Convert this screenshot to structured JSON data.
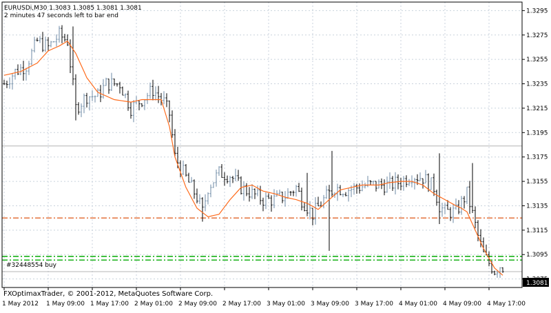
{
  "header": {
    "symbol_line": "EURUSDi,M30  1.3083 1.3085 1.3081 1.3081",
    "timer_line": "2 minutes 47 seconds left to bar end"
  },
  "footer": {
    "copyright": "FXOptimaxTrader, © 2001-2012, MetaQuotes Software Corp."
  },
  "order_label": "#32448554 buy",
  "price_label": "1.3081",
  "colors": {
    "background": "#ffffff",
    "grid": "#c8d2dc",
    "candle_bull": "#6c8aa4",
    "candle_bear": "#000000",
    "moving_average": "#ff6a1a",
    "order_line": "#00aa00",
    "level_line": "#e0642a",
    "hline": "#b4b4b4",
    "price_box": "#000000"
  },
  "chart_data": {
    "type": "candlestick",
    "symbol": "EURUSDi",
    "timeframe": "M30",
    "ylim": [
      1.3068,
      1.3302
    ],
    "y_ticks": [
      1.3295,
      1.3275,
      1.3255,
      1.3235,
      1.3215,
      1.3195,
      1.3175,
      1.3155,
      1.3135,
      1.3115,
      1.3095,
      1.3075
    ],
    "x_ticks": [
      {
        "bar": 0,
        "label": "1 May 2012"
      },
      {
        "bar": 16,
        "label": "1 May 09:00"
      },
      {
        "bar": 32,
        "label": "1 May 17:00"
      },
      {
        "bar": 48,
        "label": "2 May 01:00"
      },
      {
        "bar": 64,
        "label": "2 May 09:00"
      },
      {
        "bar": 80,
        "label": "2 May 17:00"
      },
      {
        "bar": 96,
        "label": "3 May 01:00"
      },
      {
        "bar": 112,
        "label": "3 May 09:00"
      },
      {
        "bar": 128,
        "label": "3 May 17:00"
      },
      {
        "bar": 144,
        "label": "4 May 01:00"
      },
      {
        "bar": 160,
        "label": "4 May 09:00"
      },
      {
        "bar": 176,
        "label": "4 May 17:00"
      }
    ],
    "bar_count": 182,
    "anchors": [
      [
        0,
        1.3235
      ],
      [
        4,
        1.3245
      ],
      [
        8,
        1.325
      ],
      [
        12,
        1.327
      ],
      [
        16,
        1.3265
      ],
      [
        20,
        1.3275
      ],
      [
        23,
        1.327
      ],
      [
        26,
        1.3215
      ],
      [
        30,
        1.3225
      ],
      [
        34,
        1.3225
      ],
      [
        37,
        1.3235
      ],
      [
        42,
        1.3235
      ],
      [
        46,
        1.3215
      ],
      [
        50,
        1.3222
      ],
      [
        54,
        1.323
      ],
      [
        58,
        1.322
      ],
      [
        60,
        1.321
      ],
      [
        62,
        1.3175
      ],
      [
        66,
        1.3158
      ],
      [
        70,
        1.3142
      ],
      [
        72,
        1.313
      ],
      [
        74,
        1.315
      ],
      [
        78,
        1.3162
      ],
      [
        82,
        1.316
      ],
      [
        86,
        1.315
      ],
      [
        90,
        1.3145
      ],
      [
        94,
        1.314
      ],
      [
        98,
        1.314
      ],
      [
        102,
        1.3143
      ],
      [
        106,
        1.315
      ],
      [
        108,
        1.314
      ],
      [
        112,
        1.3128
      ],
      [
        116,
        1.314
      ],
      [
        120,
        1.315
      ],
      [
        124,
        1.3148
      ],
      [
        128,
        1.315
      ],
      [
        132,
        1.3152
      ],
      [
        136,
        1.3152
      ],
      [
        140,
        1.3152
      ],
      [
        144,
        1.3155
      ],
      [
        148,
        1.316
      ],
      [
        152,
        1.3158
      ],
      [
        156,
        1.315
      ],
      [
        158,
        1.3135
      ],
      [
        160,
        1.313
      ],
      [
        164,
        1.313
      ],
      [
        168,
        1.3145
      ],
      [
        170,
        1.3128
      ],
      [
        172,
        1.311
      ],
      [
        174,
        1.3095
      ],
      [
        176,
        1.3088
      ],
      [
        178,
        1.3082
      ],
      [
        180,
        1.3086
      ],
      [
        181,
        1.3081
      ]
    ],
    "spikes": [
      {
        "bar": 25,
        "high": 1.3282
      },
      {
        "bar": 26,
        "low": 1.3205
      },
      {
        "bar": 72,
        "low": 1.3122
      },
      {
        "bar": 110,
        "high": 1.3162
      },
      {
        "bar": 119,
        "high": 1.318
      },
      {
        "bar": 118,
        "low": 1.3098
      },
      {
        "bar": 158,
        "high": 1.3178
      },
      {
        "bar": 158,
        "low": 1.312
      },
      {
        "bar": 170,
        "high": 1.317
      }
    ],
    "moving_average_anchors": [
      [
        0,
        1.3242
      ],
      [
        6,
        1.3245
      ],
      [
        12,
        1.3252
      ],
      [
        16,
        1.3262
      ],
      [
        20,
        1.3266
      ],
      [
        23,
        1.327
      ],
      [
        26,
        1.326
      ],
      [
        30,
        1.324
      ],
      [
        34,
        1.3228
      ],
      [
        40,
        1.3222
      ],
      [
        46,
        1.322
      ],
      [
        50,
        1.3222
      ],
      [
        54,
        1.3222
      ],
      [
        57,
        1.3222
      ],
      [
        60,
        1.32
      ],
      [
        62,
        1.3175
      ],
      [
        66,
        1.315
      ],
      [
        70,
        1.3133
      ],
      [
        74,
        1.3126
      ],
      [
        78,
        1.3128
      ],
      [
        82,
        1.314
      ],
      [
        86,
        1.315
      ],
      [
        90,
        1.3152
      ],
      [
        94,
        1.3147
      ],
      [
        98,
        1.3145
      ],
      [
        102,
        1.3142
      ],
      [
        106,
        1.314
      ],
      [
        110,
        1.3137
      ],
      [
        114,
        1.3132
      ],
      [
        118,
        1.314
      ],
      [
        122,
        1.3148
      ],
      [
        126,
        1.315
      ],
      [
        130,
        1.3152
      ],
      [
        136,
        1.3152
      ],
      [
        140,
        1.3154
      ],
      [
        144,
        1.3155
      ],
      [
        148,
        1.3155
      ],
      [
        152,
        1.3152
      ],
      [
        156,
        1.3145
      ],
      [
        160,
        1.314
      ],
      [
        164,
        1.3135
      ],
      [
        166,
        1.3133
      ],
      [
        168,
        1.313
      ],
      [
        170,
        1.312
      ],
      [
        172,
        1.311
      ],
      [
        174,
        1.31
      ],
      [
        176,
        1.3092
      ],
      [
        178,
        1.3084
      ],
      [
        180,
        1.308
      ],
      [
        181,
        1.3078
      ]
    ],
    "horizontal_lines": [
      {
        "name": "resistance-hline",
        "price": 1.3184,
        "style": "solid",
        "color": "#b4b4b4"
      },
      {
        "name": "level-hline",
        "price": 1.3125,
        "style": "dashdot",
        "color": "#e0642a"
      },
      {
        "name": "order-line-1",
        "price": 1.30935,
        "style": "dashdot",
        "color": "#00aa00"
      },
      {
        "name": "order-line-2",
        "price": 1.30905,
        "style": "dashdot",
        "color": "#00aa00"
      },
      {
        "name": "bid-line",
        "price": 1.3081,
        "style": "solid",
        "color": "#b4b4b4"
      }
    ],
    "last_price": 1.3081
  }
}
